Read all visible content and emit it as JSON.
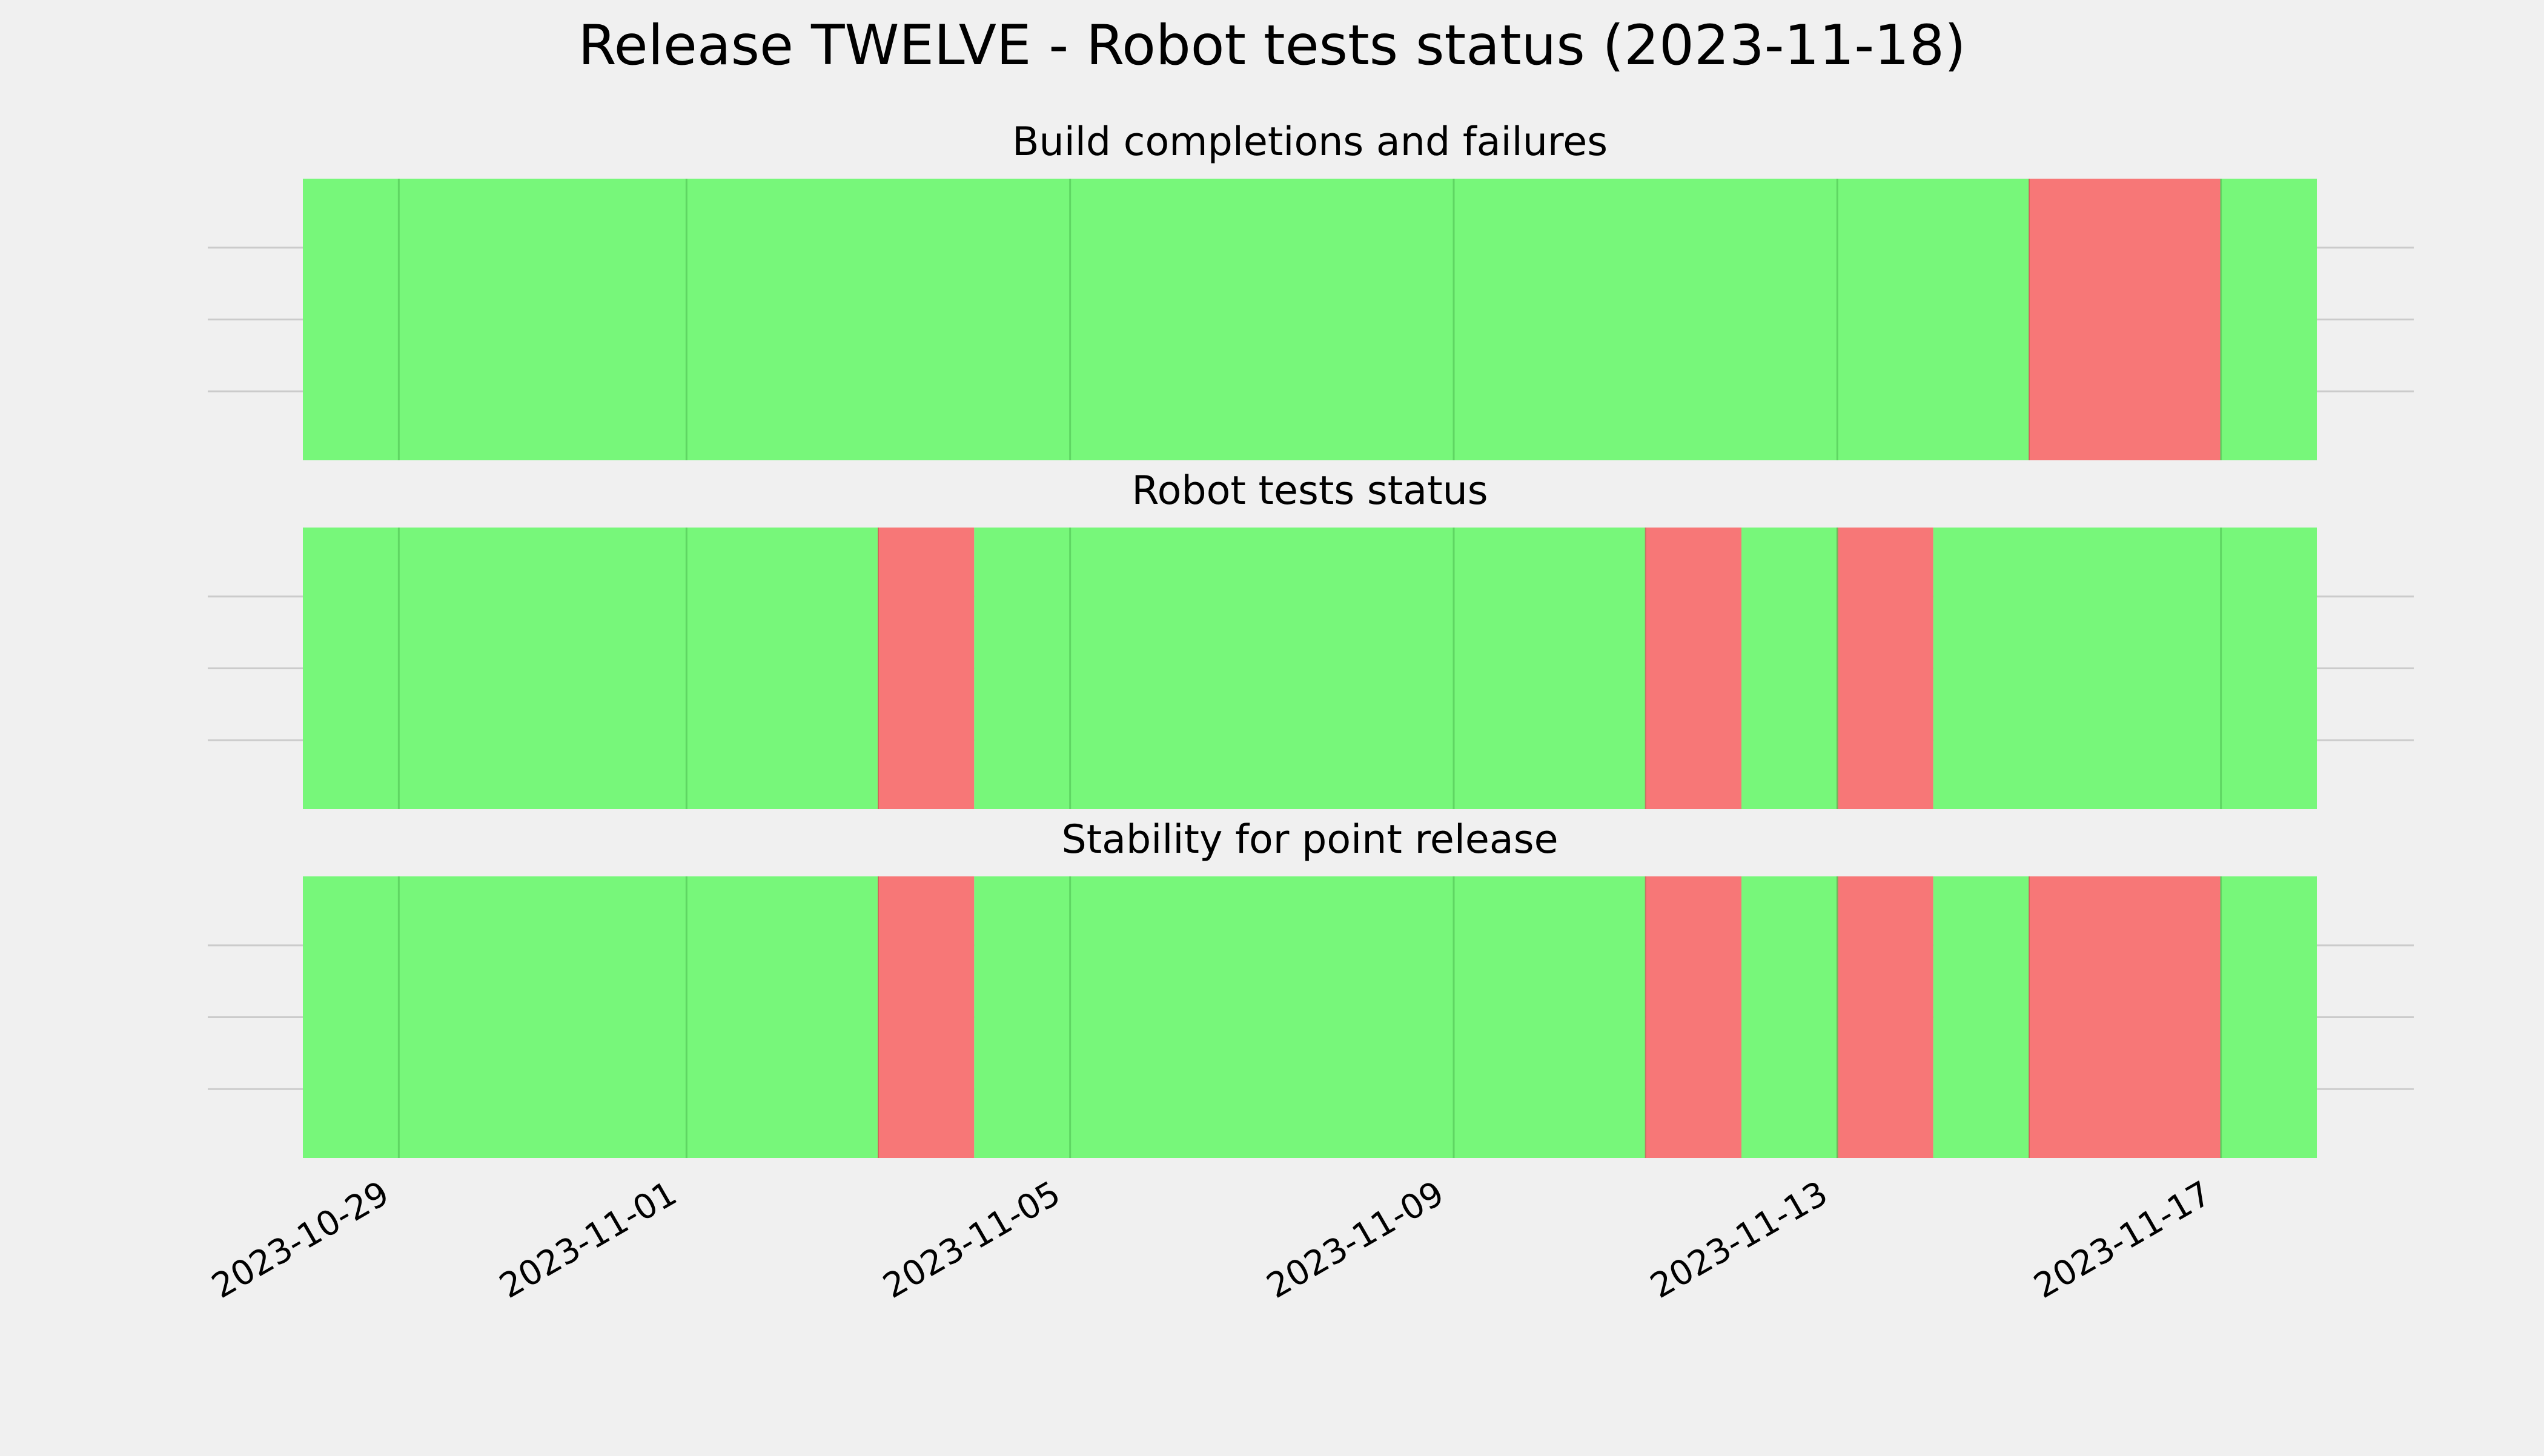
{
  "chart_data": {
    "type": "timeline",
    "title": "Release TWELVE - Robot tests status (2023-11-18)",
    "x_range": [
      "2023-10-28",
      "2023-11-18"
    ],
    "x_ticks": [
      "2023-10-29",
      "2023-11-01",
      "2023-11-05",
      "2023-11-09",
      "2023-11-13",
      "2023-11-17"
    ],
    "grid": true,
    "colors": {
      "pass": "#77f77a",
      "fail": "#f77777",
      "background": "#f0f0f0",
      "grid": "#cbcbcb"
    },
    "panels": [
      {
        "title": "Build completions and failures",
        "segments": [
          {
            "start": "2023-10-28",
            "end": "2023-11-15",
            "status": "pass"
          },
          {
            "start": "2023-11-15",
            "end": "2023-11-17",
            "status": "fail"
          },
          {
            "start": "2023-11-17",
            "end": "2023-11-18",
            "status": "pass"
          }
        ]
      },
      {
        "title": "Robot tests status",
        "segments": [
          {
            "start": "2023-10-28",
            "end": "2023-11-03",
            "status": "pass"
          },
          {
            "start": "2023-11-03",
            "end": "2023-11-04",
            "status": "fail"
          },
          {
            "start": "2023-11-04",
            "end": "2023-11-11",
            "status": "pass"
          },
          {
            "start": "2023-11-11",
            "end": "2023-11-12",
            "status": "fail"
          },
          {
            "start": "2023-11-12",
            "end": "2023-11-13",
            "status": "pass"
          },
          {
            "start": "2023-11-13",
            "end": "2023-11-14",
            "status": "fail"
          },
          {
            "start": "2023-11-14",
            "end": "2023-11-18",
            "status": "pass"
          }
        ]
      },
      {
        "title": "Stability for point release",
        "segments": [
          {
            "start": "2023-10-28",
            "end": "2023-11-03",
            "status": "pass"
          },
          {
            "start": "2023-11-03",
            "end": "2023-11-04",
            "status": "fail"
          },
          {
            "start": "2023-11-04",
            "end": "2023-11-11",
            "status": "pass"
          },
          {
            "start": "2023-11-11",
            "end": "2023-11-12",
            "status": "fail"
          },
          {
            "start": "2023-11-12",
            "end": "2023-11-13",
            "status": "pass"
          },
          {
            "start": "2023-11-13",
            "end": "2023-11-14",
            "status": "fail"
          },
          {
            "start": "2023-11-14",
            "end": "2023-11-15",
            "status": "pass"
          },
          {
            "start": "2023-11-15",
            "end": "2023-11-17",
            "status": "fail"
          },
          {
            "start": "2023-11-17",
            "end": "2023-11-18",
            "status": "pass"
          }
        ]
      }
    ]
  }
}
